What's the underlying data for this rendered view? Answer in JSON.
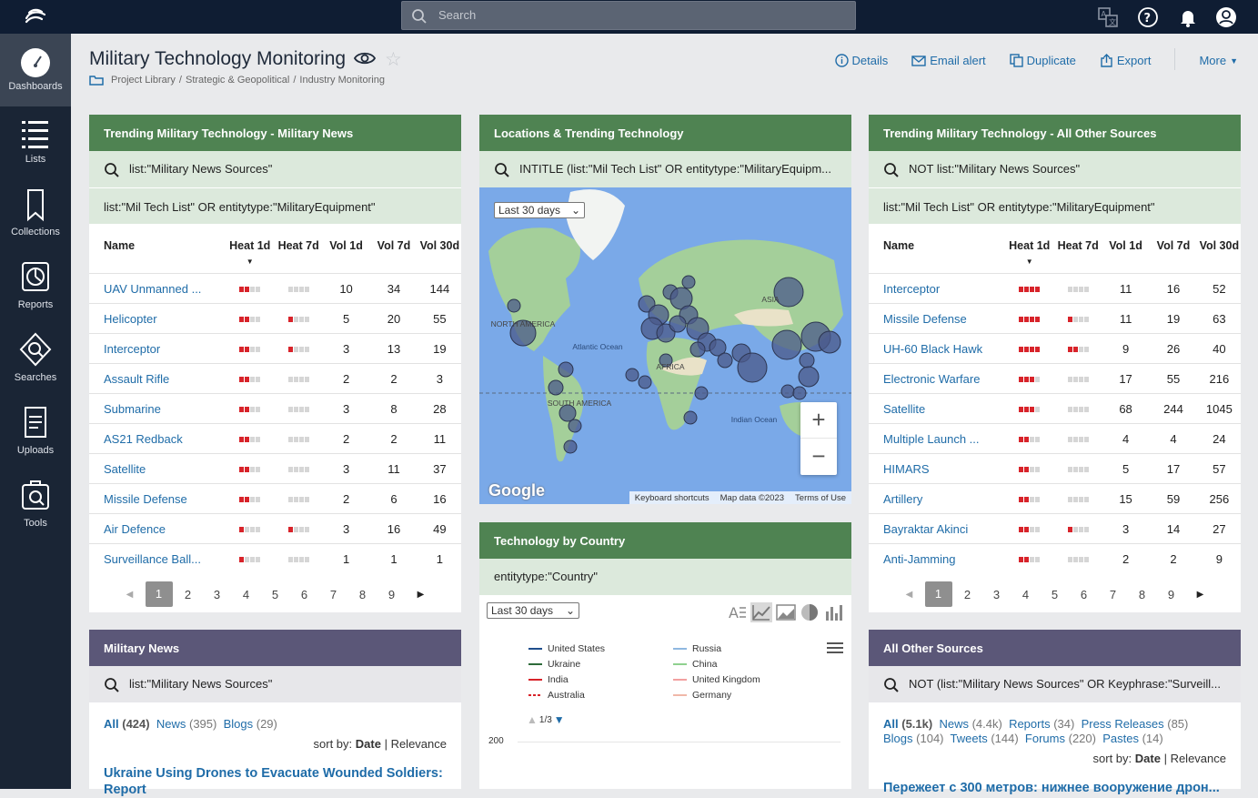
{
  "topbar": {
    "search_placeholder": "Search"
  },
  "sidebar": {
    "items": [
      {
        "label": "Dashboards",
        "icon": "gauge-icon"
      },
      {
        "label": "Lists",
        "icon": "list-icon"
      },
      {
        "label": "Collections",
        "icon": "bookmark-icon"
      },
      {
        "label": "Reports",
        "icon": "report-icon"
      },
      {
        "label": "Searches",
        "icon": "searches-icon"
      },
      {
        "label": "Uploads",
        "icon": "upload-icon"
      },
      {
        "label": "Tools",
        "icon": "tools-icon"
      }
    ]
  },
  "header": {
    "title": "Military Technology Monitoring",
    "breadcrumb": [
      "Project Library",
      "Strategic & Geopolitical",
      "Industry Monitoring"
    ],
    "actions": {
      "details": "Details",
      "email": "Email alert",
      "duplicate": "Duplicate",
      "export": "Export",
      "more": "More"
    }
  },
  "panel_left_table": {
    "title": "Trending Military Technology - Military News",
    "query1": "list:\"Military News Sources\"",
    "query2": "list:\"Mil Tech List\" OR entitytype:\"MilitaryEquipment\"",
    "columns": {
      "name": "Name",
      "heat1": "Heat 1d",
      "heat7": "Heat 7d",
      "vol1": "Vol 1d",
      "vol7": "Vol 7d",
      "vol30": "Vol 30d"
    },
    "rows": [
      {
        "name": "UAV Unmanned ...",
        "h1": 2,
        "h7": 0,
        "v1": "10",
        "v7": "34",
        "v30": "144"
      },
      {
        "name": "Helicopter",
        "h1": 2,
        "h7": 1,
        "v1": "5",
        "v7": "20",
        "v30": "55"
      },
      {
        "name": "Interceptor",
        "h1": 2,
        "h7": 1,
        "v1": "3",
        "v7": "13",
        "v30": "19"
      },
      {
        "name": "Assault Rifle",
        "h1": 2,
        "h7": 0,
        "v1": "2",
        "v7": "2",
        "v30": "3"
      },
      {
        "name": "Submarine",
        "h1": 2,
        "h7": 0,
        "v1": "3",
        "v7": "8",
        "v30": "28"
      },
      {
        "name": "AS21 Redback",
        "h1": 2,
        "h7": 0,
        "v1": "2",
        "v7": "2",
        "v30": "11"
      },
      {
        "name": "Satellite",
        "h1": 2,
        "h7": 0,
        "v1": "3",
        "v7": "11",
        "v30": "37"
      },
      {
        "name": "Missile Defense",
        "h1": 2,
        "h7": 0,
        "v1": "2",
        "v7": "6",
        "v30": "16"
      },
      {
        "name": "Air Defence",
        "h1": 1,
        "h7": 1,
        "v1": "3",
        "v7": "16",
        "v30": "49"
      },
      {
        "name": "Surveillance Ball...",
        "h1": 1,
        "h7": 0,
        "v1": "1",
        "v7": "1",
        "v30": "1"
      }
    ],
    "pages": [
      "1",
      "2",
      "3",
      "4",
      "5",
      "6",
      "7",
      "8",
      "9"
    ]
  },
  "panel_map": {
    "title": "Locations & Trending Technology",
    "query": "INTITLE (list:\"Mil Tech List\" OR entitytype:\"MilitaryEquipm...",
    "range": "Last 30 days",
    "labels": {
      "na": "NORTH AMERICA",
      "sa": "SOUTH AMERICA",
      "af": "AFRICA",
      "as": "ASIA",
      "atl": "Atlantic Ocean",
      "ind": "Indian Ocean"
    },
    "footer": {
      "shortcuts": "Keyboard shortcuts",
      "mapdata": "Map data ©2023",
      "terms": "Terms of Use"
    },
    "google": "Google",
    "zoom_in": "+",
    "zoom_out": "−"
  },
  "panel_right_table": {
    "title": "Trending Military Technology - All Other Sources",
    "query1": "NOT list:\"Military News Sources\"",
    "query2": "list:\"Mil Tech List\" OR entitytype:\"MilitaryEquipment\"",
    "columns": {
      "name": "Name",
      "heat1": "Heat 1d",
      "heat7": "Heat 7d",
      "vol1": "Vol 1d",
      "vol7": "Vol 7d",
      "vol30": "Vol 30d"
    },
    "rows": [
      {
        "name": "Interceptor",
        "h1": 4,
        "h7": 0,
        "v1": "11",
        "v7": "16",
        "v30": "52"
      },
      {
        "name": "Missile Defense",
        "h1": 4,
        "h7": 1,
        "v1": "11",
        "v7": "19",
        "v30": "63"
      },
      {
        "name": "UH-60 Black Hawk",
        "h1": 4,
        "h7": 2,
        "v1": "9",
        "v7": "26",
        "v30": "40"
      },
      {
        "name": "Electronic Warfare",
        "h1": 3,
        "h7": 0,
        "v1": "17",
        "v7": "55",
        "v30": "216"
      },
      {
        "name": "Satellite",
        "h1": 3,
        "h7": 0,
        "v1": "68",
        "v7": "244",
        "v30": "1045"
      },
      {
        "name": "Multiple Launch ...",
        "h1": 2,
        "h7": 0,
        "v1": "4",
        "v7": "4",
        "v30": "24"
      },
      {
        "name": "HIMARS",
        "h1": 2,
        "h7": 0,
        "v1": "5",
        "v7": "17",
        "v30": "57"
      },
      {
        "name": "Artillery",
        "h1": 2,
        "h7": 0,
        "v1": "15",
        "v7": "59",
        "v30": "256"
      },
      {
        "name": "Bayraktar Akinci",
        "h1": 2,
        "h7": 1,
        "v1": "3",
        "v7": "14",
        "v30": "27"
      },
      {
        "name": "Anti-Jamming",
        "h1": 2,
        "h7": 0,
        "v1": "2",
        "v7": "2",
        "v30": "9"
      }
    ],
    "pages": [
      "1",
      "2",
      "3",
      "4",
      "5",
      "6",
      "7",
      "8",
      "9"
    ]
  },
  "panel_country": {
    "title": "Technology by Country",
    "query": "entitytype:\"Country\"",
    "range": "Last 30 days",
    "legend": [
      {
        "name": "United States",
        "color": "#1f4e8c"
      },
      {
        "name": "Russia",
        "color": "#8fb8e0"
      },
      {
        "name": "Ukraine",
        "color": "#2e6b3a"
      },
      {
        "name": "China",
        "color": "#8fd18f"
      },
      {
        "name": "India",
        "color": "#d8232a"
      },
      {
        "name": "United Kingdom",
        "color": "#f2a0a0"
      },
      {
        "name": "Australia",
        "color": "#d8232a"
      },
      {
        "name": "Germany",
        "color": "#f0b8a8"
      }
    ],
    "legend_page": "1/3",
    "y_tick": "200"
  },
  "panel_news": {
    "title": "Military News",
    "query": "list:\"Military News Sources\"",
    "tabs": [
      {
        "label": "All",
        "count": "(424)"
      },
      {
        "label": "News",
        "count": "(395)"
      },
      {
        "label": "Blogs",
        "count": "(29)"
      }
    ],
    "sort_label": "sort by:",
    "sort_date": "Date",
    "sort_rel": "Relevance",
    "headline": "Ukraine Using Drones to Evacuate Wounded Soldiers: Report"
  },
  "panel_other": {
    "title": "All Other Sources",
    "query": "NOT (list:\"Military News Sources\" OR Keyphrase:\"Surveill...",
    "tabs": [
      {
        "label": "All",
        "count": "(5.1k)"
      },
      {
        "label": "News",
        "count": "(4.4k)"
      },
      {
        "label": "Reports",
        "count": "(34)"
      },
      {
        "label": "Press Releases",
        "count": "(85)"
      },
      {
        "label": "Blogs",
        "count": "(104)"
      },
      {
        "label": "Tweets",
        "count": "(144)"
      },
      {
        "label": "Forums",
        "count": "(220)"
      },
      {
        "label": "Pastes",
        "count": "(14)"
      }
    ],
    "sort_label": "sort by:",
    "sort_date": "Date",
    "sort_rel": "Relevance",
    "headline": "Пережеет с 300 метров: нижнее вооружение дрон..."
  }
}
